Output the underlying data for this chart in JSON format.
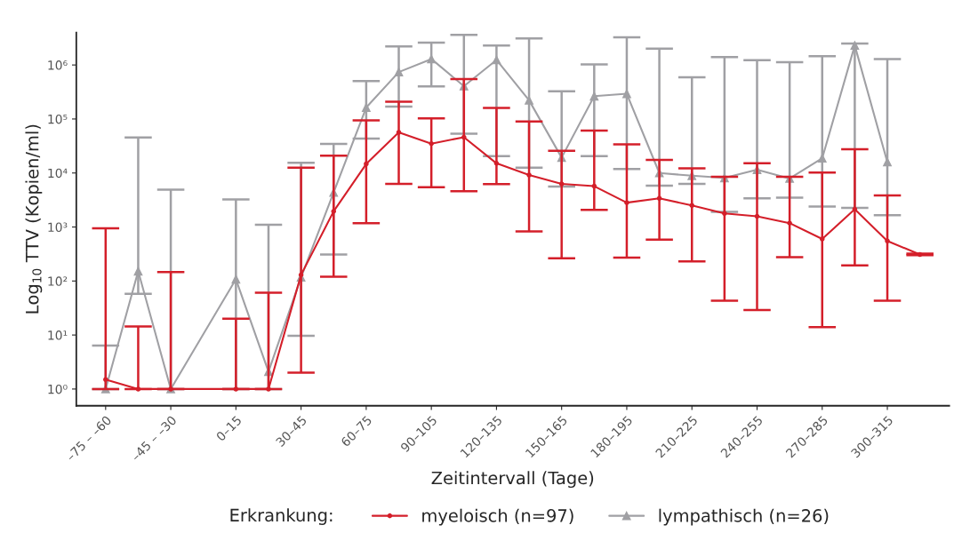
{
  "chart_data": {
    "type": "line",
    "xlabel": "Zeitintervall (Tage)",
    "ylabel": "Log$_{10}$ TTV (Kopien/ml)",
    "legend_title": "Erkrankung:",
    "categories": [
      "–75 – –60",
      null,
      "–45 – –30",
      null,
      "0–15",
      null,
      "30–45",
      null,
      "60–75",
      null,
      "90–105",
      null,
      "120–135",
      null,
      "150–165",
      null,
      "180–195",
      null,
      "210–225",
      null,
      "240–255",
      null,
      "270–285",
      null,
      "300–315",
      null
    ],
    "log": true,
    "ylim": [
      0.49,
      4000000
    ],
    "yticks": [
      {
        "value": 1,
        "label": "10⁰"
      },
      {
        "value": 10,
        "label": "10¹"
      },
      {
        "value": 100,
        "label": "10²"
      },
      {
        "value": 1000,
        "label": "10³"
      },
      {
        "value": 10000,
        "label": "10⁴"
      },
      {
        "value": 100000,
        "label": "10⁵"
      },
      {
        "value": 1000000,
        "label": "10⁶"
      }
    ],
    "grid": false,
    "legend": "bottom",
    "series": [
      {
        "name": "myeloisch (n=97)",
        "color": "#d41f2a",
        "marker": "circle",
        "values": [
          1.5,
          1,
          1,
          null,
          1,
          1,
          130,
          1950,
          14700,
          56600,
          35000,
          46000,
          15100,
          9150,
          6300,
          5700,
          2820,
          3400,
          2500,
          1780,
          1580,
          1180,
          600,
          2130,
          550,
          310
        ],
        "errors": [
          [
            1,
            950
          ],
          [
            1,
            14.4
          ],
          [
            1,
            147
          ],
          null,
          [
            1,
            20
          ],
          [
            1,
            61
          ],
          [
            2.0,
            12500
          ],
          [
            120,
            21000
          ],
          [
            1180,
            94000
          ],
          [
            6300,
            209000
          ],
          [
            5450,
            103000
          ],
          [
            4600,
            550000
          ],
          [
            6200,
            160000
          ],
          [
            830,
            89900
          ],
          [
            263,
            25700
          ],
          [
            2080,
            61000
          ],
          [
            270,
            34000
          ],
          [
            585,
            17500
          ],
          [
            230,
            12200
          ],
          [
            43,
            8500
          ],
          [
            29,
            15200
          ],
          [
            276,
            8500
          ],
          [
            14,
            10200
          ],
          [
            194,
            27500
          ],
          [
            43,
            3830
          ],
          [
            300,
            320
          ]
        ]
      },
      {
        "name": "lympathisch (n=26)",
        "color": "#a0a0a4",
        "marker": "triangle",
        "values": [
          1,
          152,
          1,
          null,
          108,
          2.1,
          117,
          4350,
          163000,
          740000,
          1290000,
          405000,
          1240000,
          222000,
          19300,
          264000,
          293000,
          10000,
          8900,
          8100,
          11500,
          7900,
          18700,
          2300000,
          15900,
          null
        ],
        "errors": [
          [
            1,
            6.4
          ],
          [
            58,
            45600
          ],
          [
            1,
            4900
          ],
          null,
          [
            1,
            3250
          ],
          [
            1,
            1100
          ],
          [
            9.7,
            15400
          ],
          [
            310,
            34500
          ],
          [
            43500,
            505000
          ],
          [
            170000,
            2200000
          ],
          [
            400000,
            2600000
          ],
          [
            53500,
            3600000
          ],
          [
            20500,
            2300000
          ],
          [
            12600,
            3100000
          ],
          [
            5600,
            326000
          ],
          [
            20500,
            1020000
          ],
          [
            11800,
            3250000
          ],
          [
            5800,
            2000000
          ],
          [
            6300,
            590000
          ],
          [
            1900,
            1400000
          ],
          [
            3400,
            1230000
          ],
          [
            3500,
            1130000
          ],
          [
            2400,
            1450000
          ],
          [
            2250,
            2500000
          ],
          [
            1660,
            1290000
          ],
          null
        ]
      }
    ]
  }
}
